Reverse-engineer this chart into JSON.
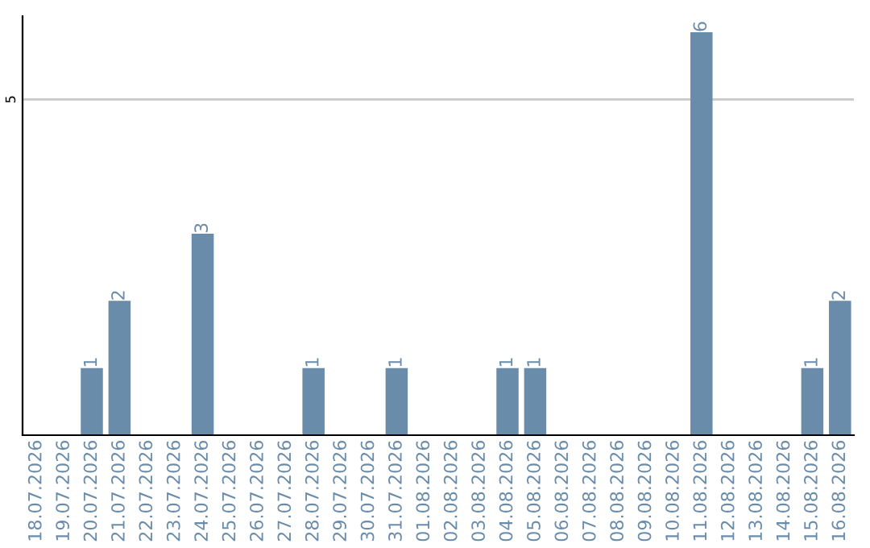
{
  "chart_data": {
    "type": "bar",
    "categories": [
      "18.07.2026",
      "19.07.2026",
      "20.07.2026",
      "21.07.2026",
      "22.07.2026",
      "23.07.2026",
      "24.07.2026",
      "25.07.2026",
      "26.07.2026",
      "27.07.2026",
      "28.07.2026",
      "29.07.2026",
      "30.07.2026",
      "31.07.2026",
      "01.08.2026",
      "02.08.2026",
      "03.08.2026",
      "04.08.2026",
      "05.08.2026",
      "06.08.2026",
      "07.08.2026",
      "08.08.2026",
      "09.08.2026",
      "10.08.2026",
      "11.08.2026",
      "12.08.2026",
      "13.08.2026",
      "14.08.2026",
      "15.08.2026",
      "16.08.2026"
    ],
    "values": [
      0,
      0,
      1,
      2,
      0,
      0,
      3,
      0,
      0,
      0,
      1,
      0,
      0,
      1,
      0,
      0,
      0,
      1,
      1,
      0,
      0,
      0,
      0,
      0,
      6,
      0,
      0,
      0,
      1,
      2
    ],
    "value_labels": [
      null,
      null,
      "1",
      "2",
      null,
      null,
      "3",
      null,
      null,
      null,
      "1",
      null,
      null,
      "1",
      null,
      null,
      null,
      "1",
      "1",
      null,
      null,
      null,
      null,
      null,
      "6",
      null,
      null,
      null,
      "1",
      "2"
    ],
    "color": "#6a8cab",
    "ylim": [
      0,
      6.24
    ],
    "yticks": [
      5
    ],
    "grid": "y",
    "legend": false
  }
}
